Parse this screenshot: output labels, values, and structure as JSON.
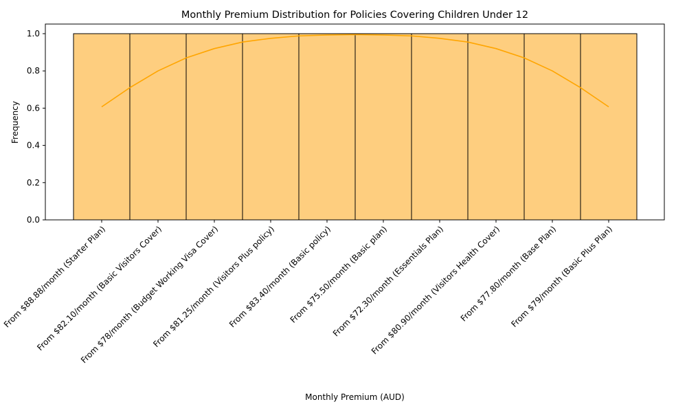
{
  "chart_data": {
    "type": "bar",
    "title": "Monthly Premium Distribution for Policies Covering Children Under 12",
    "xlabel": "Monthly Premium (AUD)",
    "ylabel": "Frequency",
    "categories": [
      "From $88.88/month (Starter Plan)",
      "From $82.10/month (Basic Visitors Cover)",
      "From $78/month (Budget Working Visa Cover)",
      "From $81.25/month (Visitors Plus policy)",
      "From $83.40/month (Basic policy)",
      "From $75.50/month (Basic plan)",
      "From $72.30/month (Essentials Plan)",
      "From $80.90/month (Visitors Health Cover)",
      "From $77.80/month (Base Plan)",
      "From $79/month (Basic Plus Plan)"
    ],
    "values": [
      1,
      1,
      1,
      1,
      1,
      1,
      1,
      1,
      1,
      1
    ],
    "kde": {
      "x_index": [
        0,
        0.5,
        1,
        1.5,
        2,
        2.5,
        3,
        3.5,
        4,
        4.5,
        5,
        5.5,
        6,
        6.5,
        7,
        7.5,
        8,
        8.5,
        9
      ],
      "values": [
        0.607,
        0.71,
        0.8,
        0.87,
        0.92,
        0.955,
        0.975,
        0.988,
        0.993,
        0.995,
        0.993,
        0.988,
        0.975,
        0.955,
        0.92,
        0.87,
        0.8,
        0.71,
        0.607
      ]
    },
    "ylim": [
      0,
      1.05
    ],
    "yticks": [
      0.0,
      0.2,
      0.4,
      0.6,
      0.8,
      1.0
    ],
    "ytick_labels": [
      "0.0",
      "0.2",
      "0.4",
      "0.6",
      "0.8",
      "1.0"
    ],
    "grid": false,
    "legend": "none",
    "colors": {
      "bar_fill": "#fece7f",
      "bar_edge": "#000000",
      "kde_line": "#ffa500",
      "axis": "#000000"
    }
  }
}
